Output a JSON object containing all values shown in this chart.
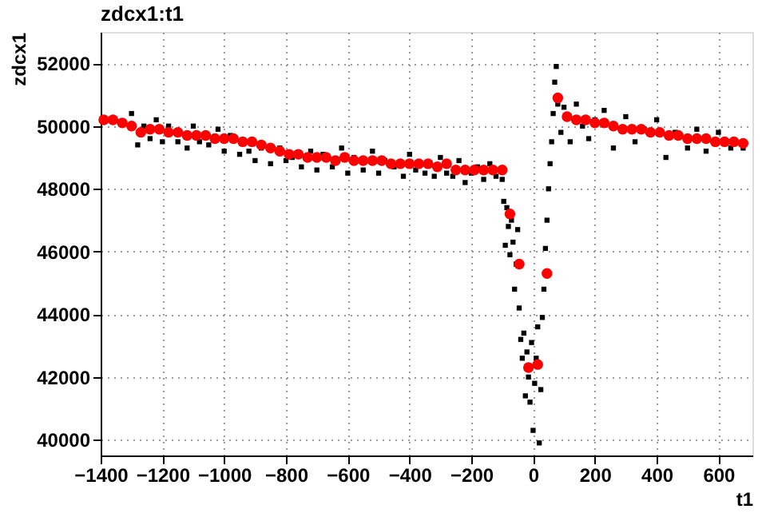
{
  "chart_data": {
    "type": "scatter",
    "title": "zdcx1:t1",
    "xlabel": "t1",
    "ylabel": "zdcx1",
    "xlim": [
      -1400,
      710
    ],
    "ylim": [
      39500,
      53000
    ],
    "xticks": [
      -1400,
      -1200,
      -1000,
      -800,
      -600,
      -400,
      -200,
      0,
      200,
      400,
      600
    ],
    "yticks": [
      40000,
      42000,
      44000,
      46000,
      48000,
      50000,
      52000
    ],
    "grid": true,
    "series": [
      {
        "color": "#000000",
        "marker": "square",
        "x": [
          -1300,
          -1280,
          -1260,
          -1240,
          -1220,
          -1200,
          -1180,
          -1150,
          -1120,
          -1100,
          -1080,
          -1050,
          -1020,
          -1000,
          -980,
          -950,
          -920,
          -900,
          -880,
          -850,
          -820,
          -800,
          -780,
          -750,
          -720,
          -700,
          -680,
          -650,
          -620,
          -600,
          -580,
          -550,
          -520,
          -500,
          -480,
          -450,
          -420,
          -400,
          -380,
          -350,
          -320,
          -300,
          -280,
          -260,
          -240,
          -220,
          -200,
          -180,
          -160,
          -140,
          -120,
          -100,
          -95,
          -90,
          -85,
          -80,
          -75,
          -70,
          -65,
          -60,
          -55,
          -50,
          -45,
          -40,
          -35,
          -30,
          -25,
          -20,
          -15,
          -10,
          -5,
          0,
          5,
          10,
          15,
          20,
          25,
          30,
          35,
          40,
          45,
          50,
          55,
          60,
          65,
          70,
          75,
          80,
          90,
          100,
          120,
          140,
          160,
          180,
          200,
          230,
          260,
          300,
          330,
          360,
          400,
          430,
          460,
          500,
          530,
          560,
          600,
          640,
          680
        ],
        "values": [
          50400,
          49400,
          50000,
          49600,
          50200,
          49500,
          50000,
          49500,
          49300,
          50000,
          49500,
          49400,
          49900,
          49200,
          49700,
          49100,
          49200,
          48900,
          49300,
          48800,
          49300,
          48900,
          49000,
          48700,
          49200,
          48600,
          49100,
          48700,
          49300,
          48500,
          49000,
          48600,
          49200,
          48500,
          48900,
          48700,
          48400,
          49100,
          48600,
          48500,
          48400,
          49000,
          48500,
          48400,
          48900,
          48200,
          48500,
          48700,
          48300,
          48800,
          48400,
          48300,
          47600,
          46200,
          47400,
          46800,
          45900,
          47000,
          46300,
          44800,
          45600,
          46700,
          44200,
          43200,
          42600,
          43400,
          41400,
          42800,
          42000,
          41200,
          43100,
          40300,
          41800,
          42600,
          43600,
          39900,
          41600,
          43900,
          44800,
          46100,
          47000,
          48000,
          48800,
          49500,
          50400,
          51400,
          51900,
          50700,
          49800,
          50600,
          49500,
          50700,
          50000,
          49600,
          50200,
          50500,
          49300,
          50300,
          49500,
          49900,
          50200,
          49000,
          49800,
          49300,
          49900,
          49200,
          49800,
          49300,
          49300
        ]
      },
      {
        "color": "#ff0000",
        "marker": "circle",
        "x": [
          -1390,
          -1360,
          -1330,
          -1300,
          -1270,
          -1240,
          -1210,
          -1180,
          -1150,
          -1120,
          -1090,
          -1060,
          -1030,
          -1000,
          -970,
          -940,
          -910,
          -880,
          -850,
          -820,
          -790,
          -760,
          -730,
          -700,
          -670,
          -640,
          -610,
          -580,
          -550,
          -520,
          -490,
          -460,
          -430,
          -400,
          -370,
          -340,
          -310,
          -280,
          -250,
          -220,
          -190,
          -160,
          -130,
          -100,
          -75,
          -45,
          -15,
          15,
          45,
          80,
          110,
          140,
          170,
          200,
          230,
          260,
          290,
          320,
          350,
          380,
          410,
          440,
          470,
          500,
          530,
          560,
          590,
          620,
          650,
          680
        ],
        "values": [
          50200,
          50200,
          50100,
          50000,
          49800,
          49900,
          49900,
          49800,
          49800,
          49700,
          49700,
          49700,
          49600,
          49600,
          49600,
          49500,
          49500,
          49400,
          49300,
          49200,
          49100,
          49100,
          49000,
          49000,
          49000,
          48900,
          49000,
          48900,
          48900,
          48900,
          48900,
          48800,
          48800,
          48800,
          48800,
          48800,
          48700,
          48800,
          48600,
          48600,
          48600,
          48600,
          48600,
          48600,
          47200,
          45600,
          42300,
          42400,
          45300,
          50900,
          50300,
          50200,
          50200,
          50100,
          50100,
          50000,
          49900,
          49900,
          49900,
          49800,
          49800,
          49700,
          49700,
          49600,
          49600,
          49600,
          49500,
          49500,
          49500,
          49450
        ]
      }
    ]
  }
}
